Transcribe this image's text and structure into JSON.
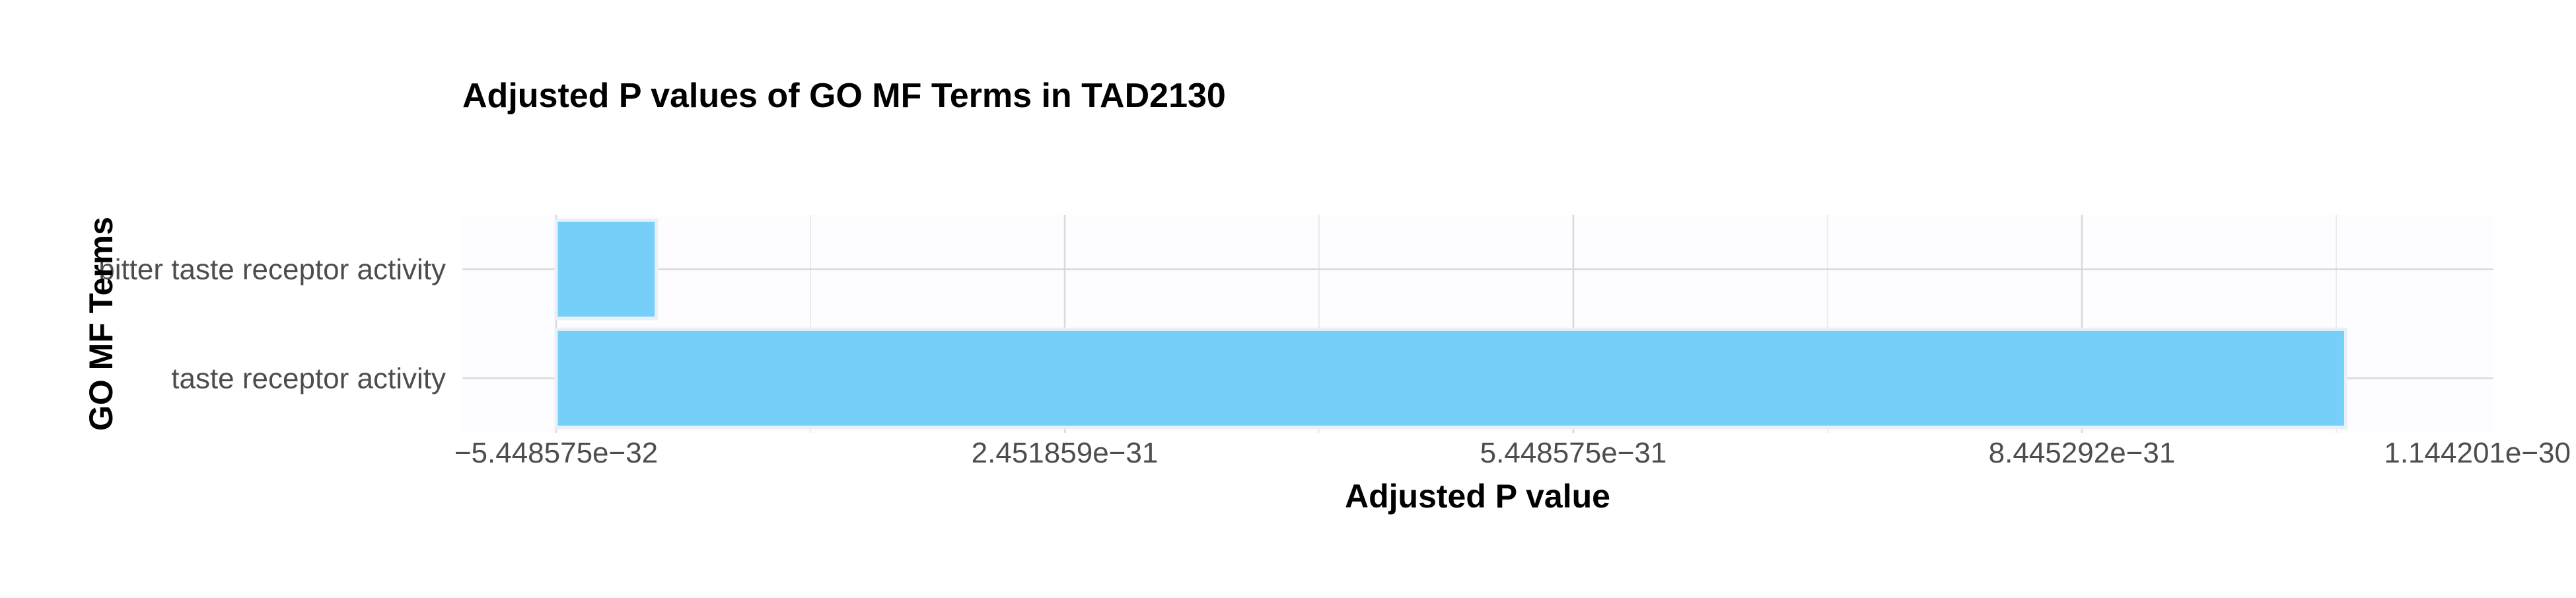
{
  "chart_data": {
    "type": "bar",
    "orientation": "horizontal",
    "title": "Adjusted P values of GO MF Terms in TAD2130",
    "xlabel": "Adjusted P value",
    "ylabel": "GO MF Terms",
    "categories": [
      "taste receptor activity",
      "bitter taste receptor activity"
    ],
    "values": [
      1e-30,
      4.5e-33
    ],
    "xlim": [
      -5.448575e-32,
      1.144201e-30
    ],
    "xticks": [
      -5.448575e-32,
      2.451859e-31,
      5.448575e-31,
      8.445292e-31,
      1.144201e-30
    ],
    "xtick_labels": [
      "−5.448575e−32",
      "2.451859e−31",
      "5.448575e−31",
      "8.445292e−31",
      "1.144201e−30"
    ],
    "grid": true,
    "legend": "none",
    "colors": {
      "bar_fill": "#75cff9",
      "bar_stroke": "#e8f0f8",
      "panel_bg": "#fdfcff",
      "grid_major": "#d9d9d9",
      "grid_minor": "#ebebeb"
    }
  }
}
